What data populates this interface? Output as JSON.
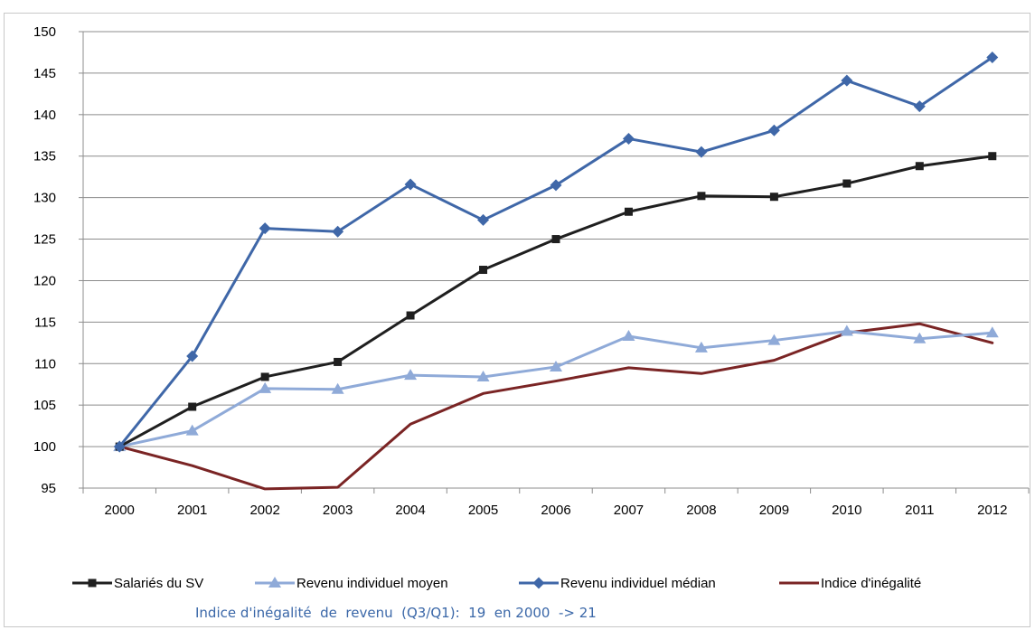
{
  "chart_data": {
    "type": "line",
    "title": "",
    "xlabel": "",
    "ylabel": "",
    "ylim": [
      95,
      150
    ],
    "yticks": [
      95,
      100,
      105,
      110,
      115,
      120,
      125,
      130,
      135,
      140,
      145,
      150
    ],
    "categories": [
      "2000",
      "2001",
      "2002",
      "2003",
      "2004",
      "2005",
      "2006",
      "2007",
      "2008",
      "2009",
      "2010",
      "2011",
      "2012"
    ],
    "grid": "horizontal",
    "legend_position": "bottom",
    "series": [
      {
        "name": "Salariés du SV",
        "color": "#1f1f1f",
        "marker": "square",
        "values": [
          100,
          104.8,
          108.4,
          110.2,
          115.8,
          121.3,
          125,
          128.3,
          130.2,
          130.1,
          131.7,
          133.8,
          135
        ]
      },
      {
        "name": "Revenu individuel moyen",
        "color": "#8faad8",
        "marker": "triangle",
        "values": [
          100,
          101.9,
          107,
          106.9,
          108.6,
          108.4,
          109.6,
          113.3,
          111.9,
          112.8,
          113.9,
          113,
          113.7
        ]
      },
      {
        "name": "Revenu individuel médian",
        "color": "#3f67a8",
        "marker": "diamond",
        "values": [
          100,
          110.9,
          126.3,
          125.9,
          131.6,
          127.3,
          131.5,
          137.1,
          135.5,
          138.1,
          144.1,
          141,
          146.9
        ]
      },
      {
        "name": "Indice d'inégalité",
        "color": "#7a2424",
        "marker": "none",
        "values": [
          100,
          97.7,
          94.9,
          95.1,
          102.7,
          106.4,
          107.9,
          109.5,
          108.8,
          110.4,
          113.7,
          114.8,
          112.5
        ]
      }
    ]
  },
  "footnote": "Indice d'inégalité  de  revenu  (Q3/Q1):  19  en 2000  -> 21"
}
